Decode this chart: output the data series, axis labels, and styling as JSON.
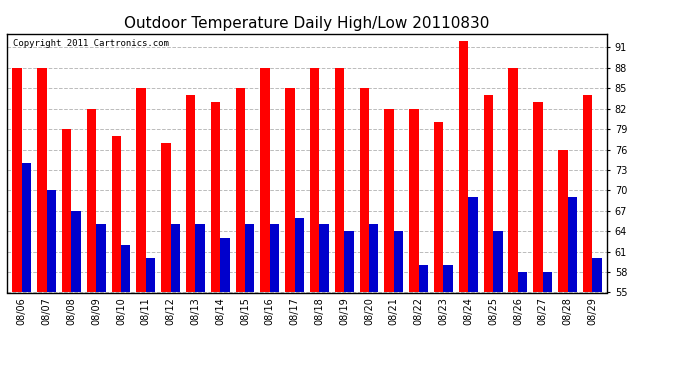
{
  "title": "Outdoor Temperature Daily High/Low 20110830",
  "copyright_text": "Copyright 2011 Cartronics.com",
  "dates": [
    "08/06",
    "08/07",
    "08/08",
    "08/09",
    "08/10",
    "08/11",
    "08/12",
    "08/13",
    "08/14",
    "08/15",
    "08/16",
    "08/17",
    "08/18",
    "08/19",
    "08/20",
    "08/21",
    "08/22",
    "08/23",
    "08/24",
    "08/25",
    "08/26",
    "08/27",
    "08/28",
    "08/29"
  ],
  "highs": [
    88,
    88,
    79,
    82,
    78,
    85,
    77,
    84,
    83,
    85,
    88,
    85,
    88,
    88,
    85,
    82,
    82,
    80,
    92,
    84,
    88,
    83,
    76,
    84
  ],
  "lows": [
    74,
    70,
    67,
    65,
    62,
    60,
    65,
    65,
    63,
    65,
    65,
    66,
    65,
    64,
    65,
    64,
    59,
    59,
    69,
    64,
    58,
    58,
    69,
    60
  ],
  "ylim_min": 55.0,
  "ylim_max": 93.0,
  "yticks": [
    55.0,
    58.0,
    61.0,
    64.0,
    67.0,
    70.0,
    73.0,
    76.0,
    79.0,
    82.0,
    85.0,
    88.0,
    91.0
  ],
  "bar_width": 0.38,
  "high_color": "#ff0000",
  "low_color": "#0000cc",
  "bg_color": "#ffffff",
  "grid_color": "#bbbbbb",
  "title_fontsize": 11,
  "tick_fontsize": 7,
  "copyright_fontsize": 6.5
}
